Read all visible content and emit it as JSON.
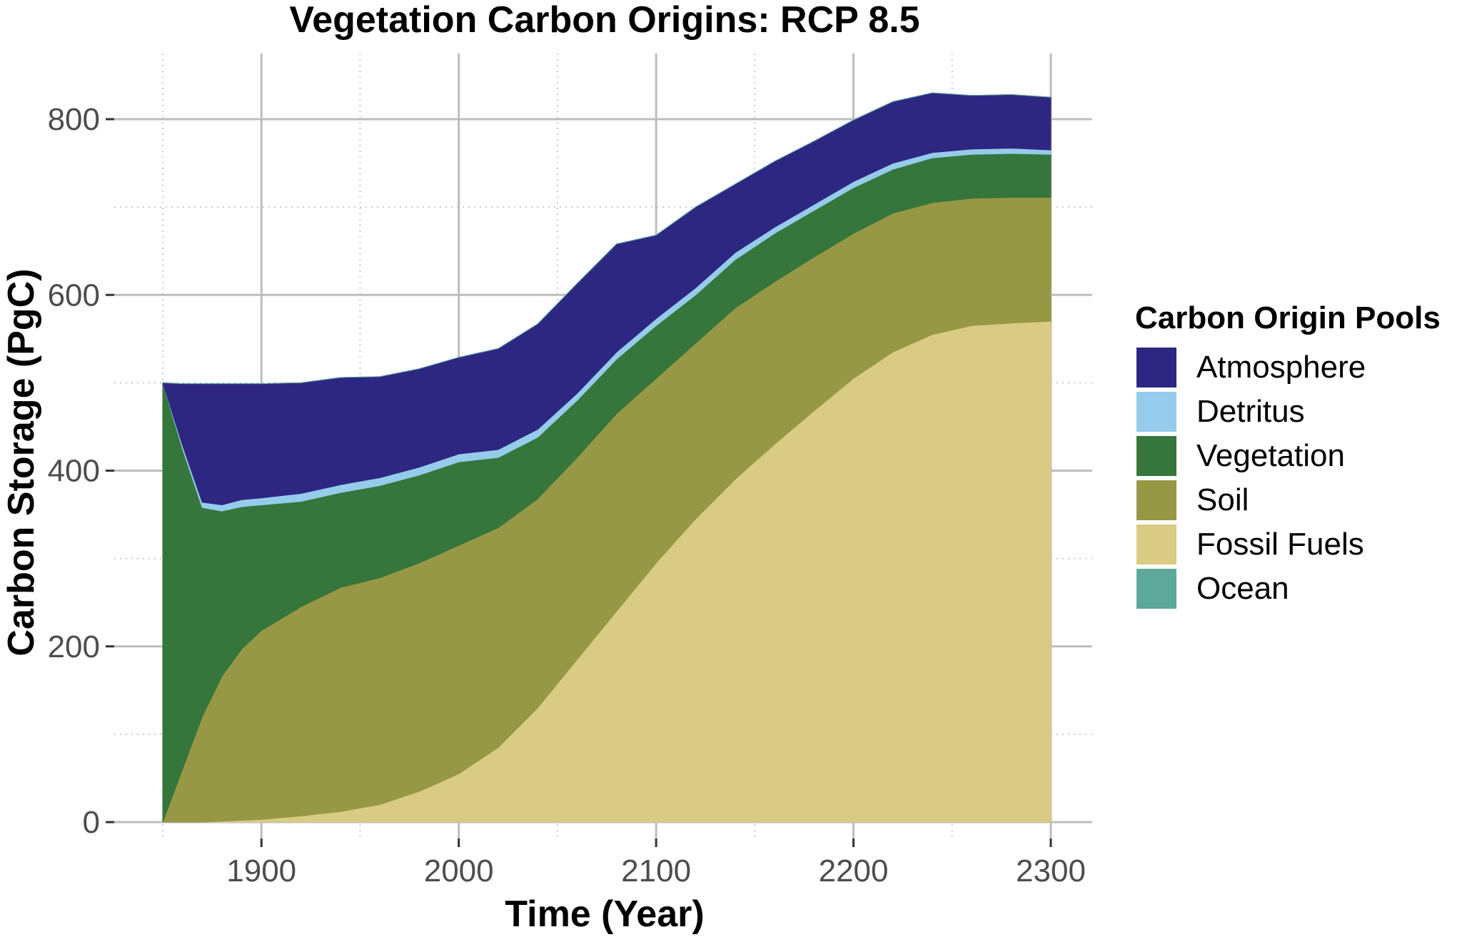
{
  "chart_data": {
    "type": "area",
    "stacked": true,
    "title": "Vegetation Carbon Origins: RCP 8.5",
    "xlabel": "Time (Year)",
    "ylabel": "Carbon Storage (PgC)",
    "xlim": [
      1850,
      2300
    ],
    "ylim": [
      0,
      850
    ],
    "x_ticks": [
      1900,
      2000,
      2100,
      2200,
      2300
    ],
    "y_ticks": [
      0,
      200,
      400,
      600,
      800
    ],
    "grid": true,
    "legend": {
      "title": "Carbon Origin Pools",
      "position": "right"
    },
    "x": [
      1850,
      1860,
      1870,
      1880,
      1890,
      1900,
      1920,
      1940,
      1960,
      1980,
      2000,
      2020,
      2040,
      2060,
      2080,
      2100,
      2120,
      2140,
      2160,
      2180,
      2200,
      2220,
      2240,
      2260,
      2280,
      2300
    ],
    "series": [
      {
        "name": "Fossil Fuels",
        "color": "#d9cb84",
        "values": [
          0,
          0,
          0,
          1,
          2,
          3,
          7,
          12,
          20,
          35,
          55,
          85,
          130,
          185,
          240,
          295,
          345,
          390,
          430,
          468,
          505,
          535,
          555,
          565,
          568,
          570
        ]
      },
      {
        "name": "Soil",
        "color": "#979845",
        "values": [
          0,
          60,
          120,
          165,
          195,
          215,
          238,
          255,
          258,
          260,
          260,
          250,
          238,
          230,
          225,
          210,
          200,
          195,
          185,
          175,
          165,
          158,
          150,
          145,
          143,
          141
        ]
      },
      {
        "name": "Vegetation",
        "color": "#36753b",
        "values": [
          500,
          365,
          238,
          188,
          162,
          143,
          120,
          108,
          105,
          100,
          95,
          80,
          70,
          65,
          62,
          60,
          55,
          55,
          55,
          53,
          52,
          50,
          51,
          50,
          50,
          49
        ]
      },
      {
        "name": "Detritus",
        "color": "#95cbeb",
        "values": [
          0,
          4,
          6,
          7,
          8,
          8,
          9,
          9,
          9,
          9,
          9,
          9,
          9,
          8,
          8,
          8,
          8,
          8,
          7,
          7,
          7,
          7,
          6,
          6,
          6,
          5
        ]
      },
      {
        "name": "Atmosphere",
        "color": "#2e2782",
        "values": [
          0,
          70,
          135,
          138,
          132,
          130,
          126,
          122,
          115,
          112,
          110,
          115,
          120,
          125,
          123,
          95,
          92,
          78,
          75,
          72,
          70,
          70,
          68,
          61,
          61,
          60
        ]
      },
      {
        "name": "Ocean",
        "color": "#5da899",
        "values": [
          0,
          0,
          0,
          0,
          0,
          0,
          0,
          0,
          0,
          0,
          0,
          0,
          0,
          0,
          0,
          0,
          0,
          0,
          0,
          0,
          0,
          0,
          0,
          0,
          0,
          0
        ]
      }
    ],
    "legend_order": [
      "Atmosphere",
      "Detritus",
      "Vegetation",
      "Soil",
      "Fossil Fuels",
      "Ocean"
    ]
  }
}
